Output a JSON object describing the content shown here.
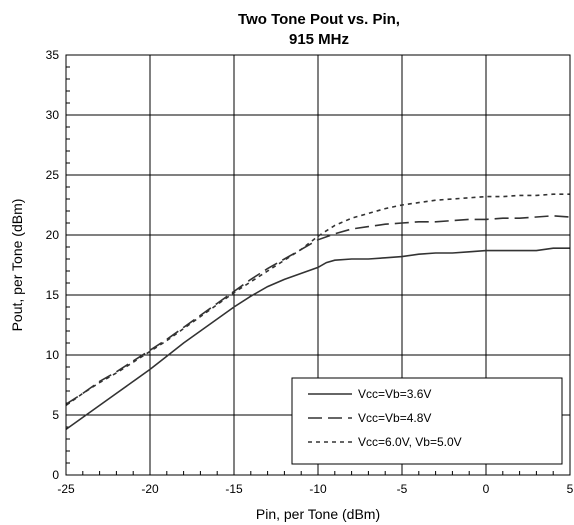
{
  "chart_data": {
    "type": "line",
    "title_lines": [
      "Two Tone Pout vs. Pin,",
      "915 MHz"
    ],
    "xlabel": "Pin, per Tone (dBm)",
    "ylabel": "Pout, per Tone (dBm)",
    "xlim": [
      -25,
      5
    ],
    "ylim": [
      0,
      35
    ],
    "xticks": [
      -25,
      -20,
      -15,
      -10,
      -5,
      0,
      5
    ],
    "yticks": [
      0,
      5,
      10,
      15,
      20,
      25,
      30,
      35
    ],
    "grid": true,
    "legend_position": "bottom-right",
    "series": [
      {
        "name": "Vcc=Vb=3.6V",
        "dash": "solid",
        "color": "#333333",
        "points": [
          [
            -25,
            3.8
          ],
          [
            -24,
            4.8
          ],
          [
            -23,
            5.8
          ],
          [
            -22,
            6.8
          ],
          [
            -21,
            7.8
          ],
          [
            -20,
            8.8
          ],
          [
            -19,
            9.9
          ],
          [
            -18,
            11.0
          ],
          [
            -17,
            12.0
          ],
          [
            -16,
            13.0
          ],
          [
            -15,
            14.0
          ],
          [
            -14,
            14.9
          ],
          [
            -13,
            15.7
          ],
          [
            -12,
            16.3
          ],
          [
            -11,
            16.8
          ],
          [
            -10,
            17.3
          ],
          [
            -9.5,
            17.7
          ],
          [
            -9,
            17.9
          ],
          [
            -8,
            18.0
          ],
          [
            -7,
            18.0
          ],
          [
            -6,
            18.1
          ],
          [
            -5,
            18.2
          ],
          [
            -4,
            18.4
          ],
          [
            -3,
            18.5
          ],
          [
            -2,
            18.5
          ],
          [
            -1,
            18.6
          ],
          [
            0,
            18.7
          ],
          [
            1,
            18.7
          ],
          [
            2,
            18.7
          ],
          [
            3,
            18.7
          ],
          [
            4,
            18.9
          ],
          [
            5,
            18.9
          ]
        ]
      },
      {
        "name": "Vcc=Vb=4.8V",
        "dash": "long-dash",
        "color": "#333333",
        "points": [
          [
            -25,
            5.9
          ],
          [
            -24,
            6.8
          ],
          [
            -23,
            7.8
          ],
          [
            -22,
            8.6
          ],
          [
            -21,
            9.5
          ],
          [
            -20,
            10.4
          ],
          [
            -19,
            11.3
          ],
          [
            -18,
            12.3
          ],
          [
            -17,
            13.3
          ],
          [
            -16,
            14.3
          ],
          [
            -15,
            15.3
          ],
          [
            -14,
            16.3
          ],
          [
            -13,
            17.2
          ],
          [
            -12,
            18.0
          ],
          [
            -11,
            18.8
          ],
          [
            -10,
            19.6
          ],
          [
            -9,
            20.1
          ],
          [
            -8,
            20.5
          ],
          [
            -7,
            20.7
          ],
          [
            -6,
            20.9
          ],
          [
            -5,
            21.0
          ],
          [
            -4,
            21.1
          ],
          [
            -3,
            21.1
          ],
          [
            -2,
            21.2
          ],
          [
            -1,
            21.3
          ],
          [
            0,
            21.3
          ],
          [
            1,
            21.4
          ],
          [
            2,
            21.4
          ],
          [
            3,
            21.5
          ],
          [
            4,
            21.6
          ],
          [
            5,
            21.5
          ]
        ]
      },
      {
        "name": "Vcc=6.0V, Vb=5.0V",
        "dash": "short-dash",
        "color": "#333333",
        "points": [
          [
            -25,
            5.8
          ],
          [
            -24,
            6.8
          ],
          [
            -23,
            7.7
          ],
          [
            -22,
            8.5
          ],
          [
            -21,
            9.4
          ],
          [
            -20,
            10.3
          ],
          [
            -19,
            11.2
          ],
          [
            -18,
            12.2
          ],
          [
            -17,
            13.2
          ],
          [
            -16,
            14.2
          ],
          [
            -15,
            15.2
          ],
          [
            -14,
            16.1
          ],
          [
            -13,
            17.0
          ],
          [
            -12,
            17.9
          ],
          [
            -11,
            18.8
          ],
          [
            -10,
            19.9
          ],
          [
            -9,
            20.8
          ],
          [
            -8,
            21.4
          ],
          [
            -7,
            21.8
          ],
          [
            -6,
            22.2
          ],
          [
            -5,
            22.5
          ],
          [
            -4,
            22.7
          ],
          [
            -3,
            22.9
          ],
          [
            -2,
            23.0
          ],
          [
            -1,
            23.1
          ],
          [
            0,
            23.2
          ],
          [
            1,
            23.2
          ],
          [
            2,
            23.3
          ],
          [
            3,
            23.3
          ],
          [
            4,
            23.4
          ],
          [
            5,
            23.4
          ]
        ]
      }
    ]
  }
}
